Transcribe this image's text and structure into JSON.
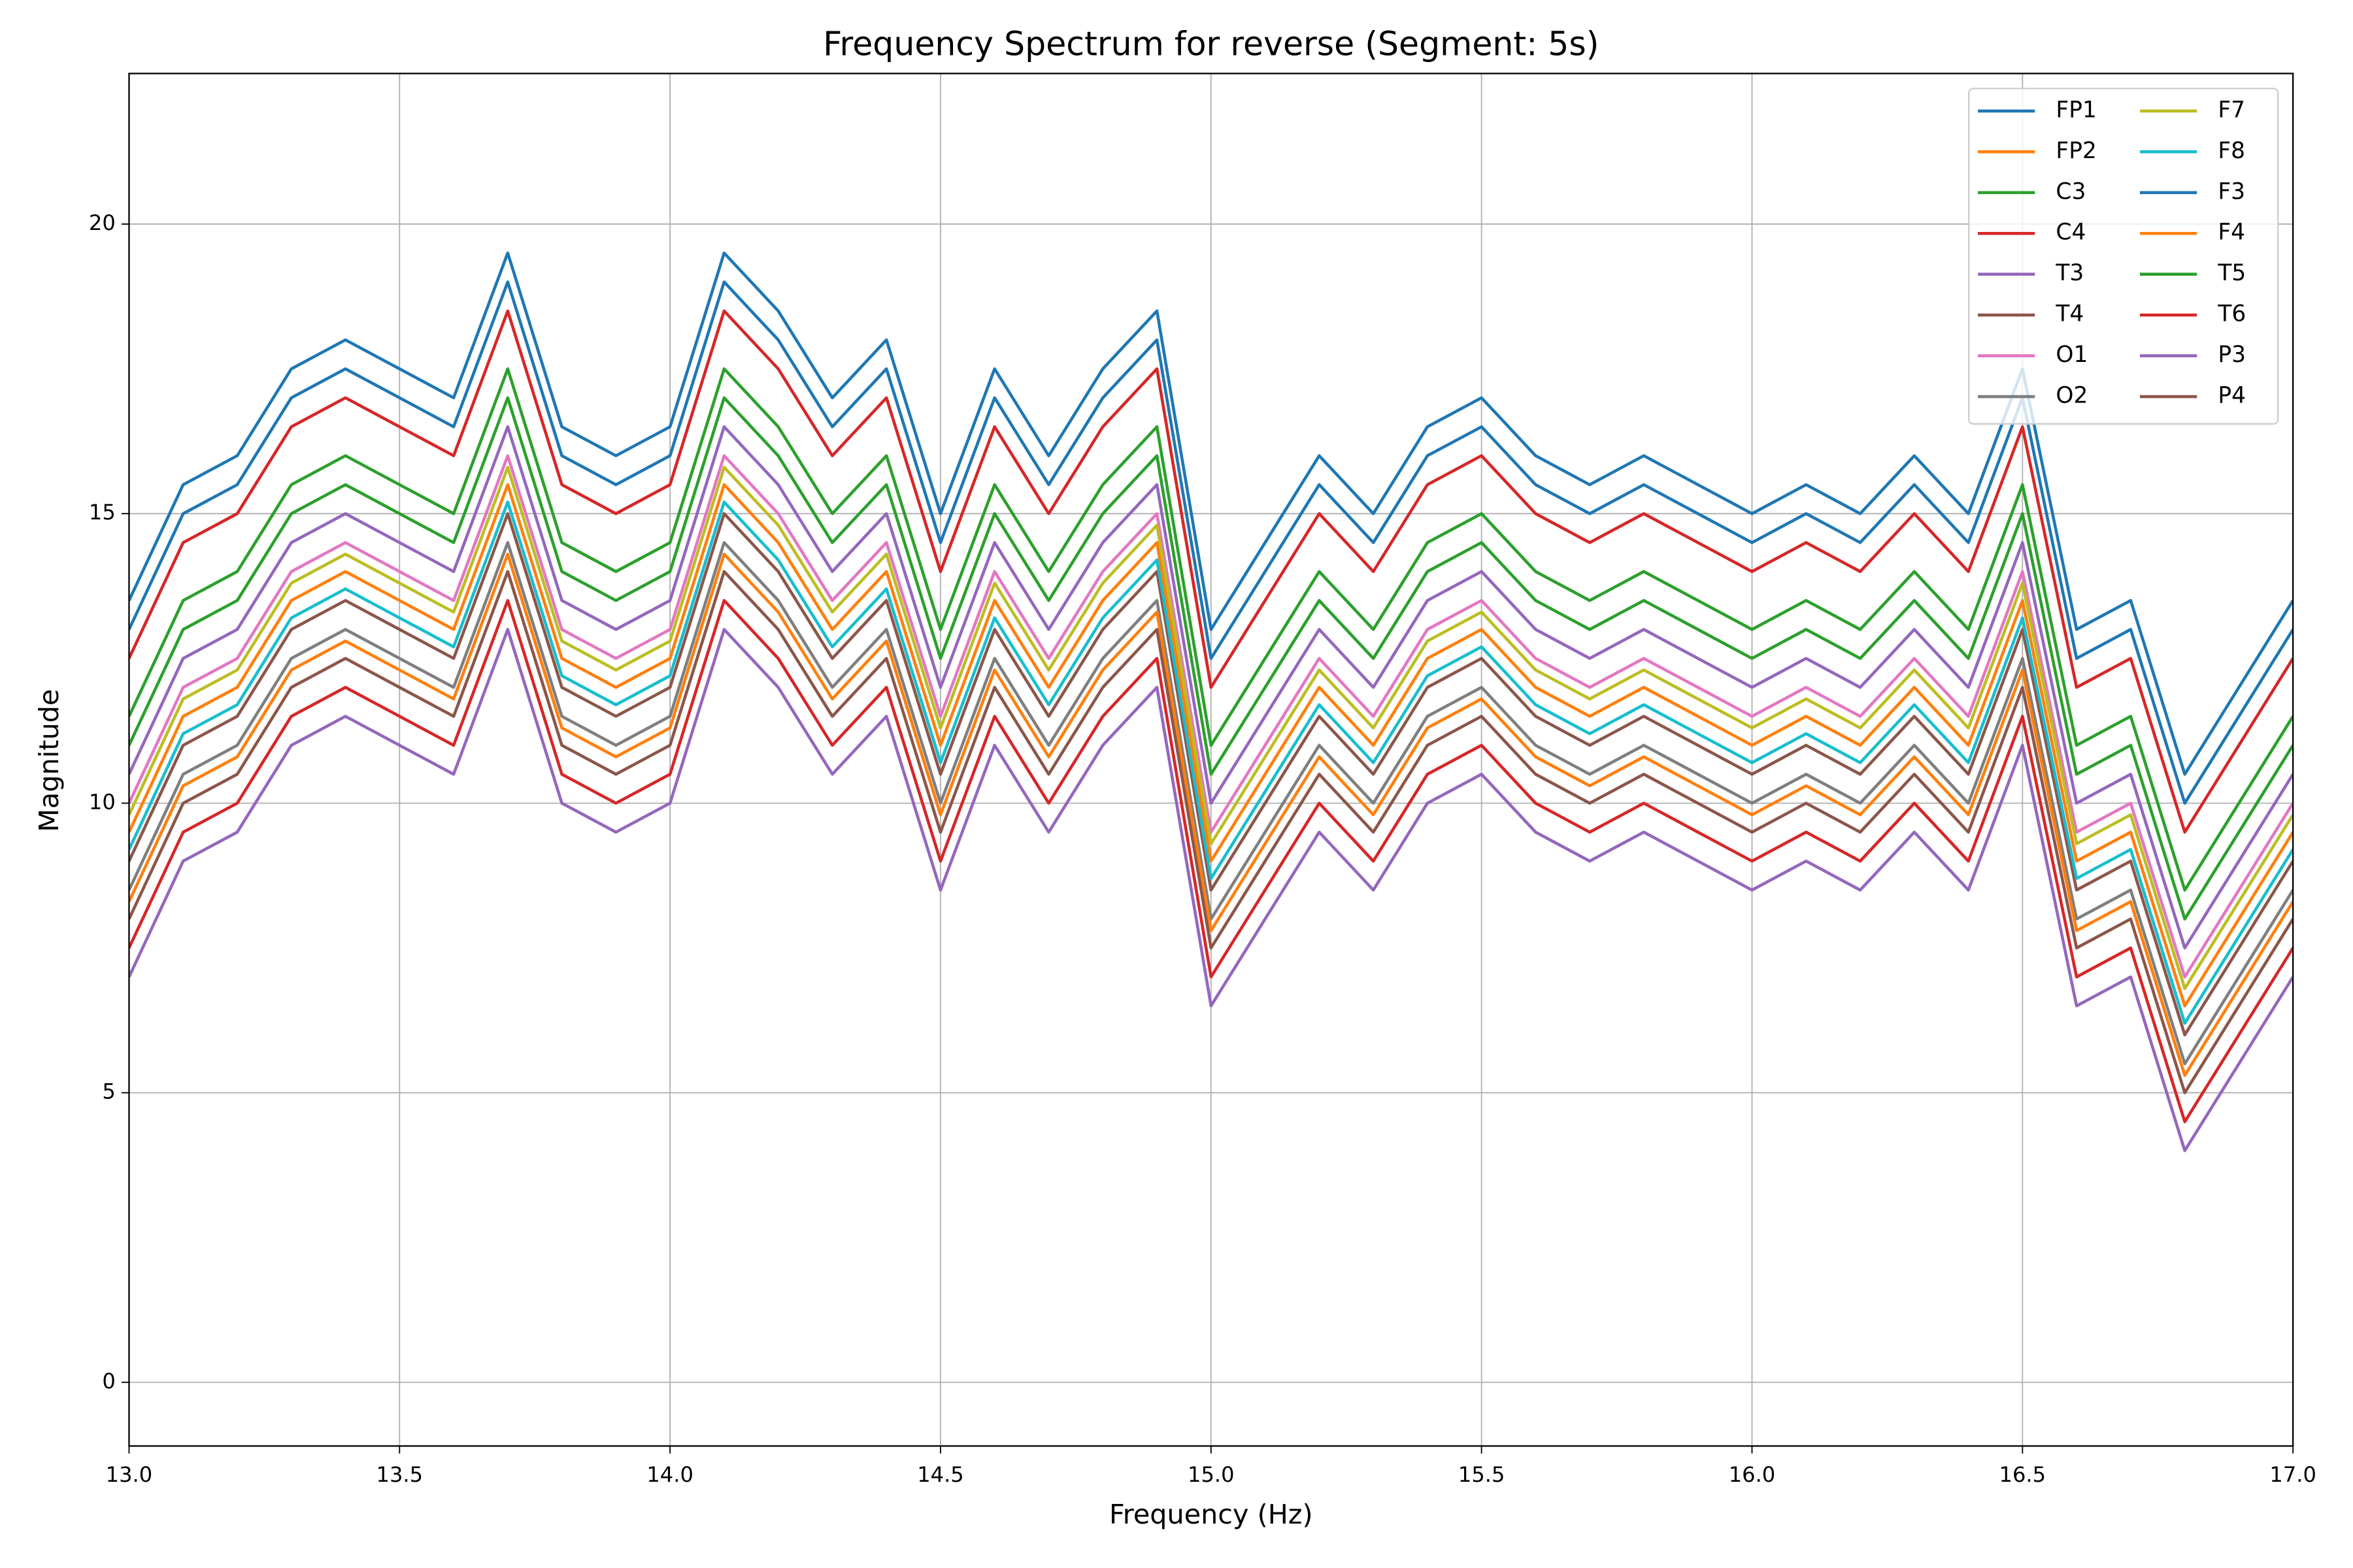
{
  "chart_data": {
    "type": "line",
    "title": "Frequency Spectrum for reverse (Segment: 5s)",
    "x_label": "Frequency (Hz)",
    "y_label": "Magnitude",
    "x": [
      13.0,
      13.1,
      13.2,
      13.3,
      13.4,
      13.5,
      13.6,
      13.7,
      13.8,
      13.9,
      14.0,
      14.1,
      14.2,
      14.3,
      14.4,
      14.5,
      14.6,
      14.7,
      14.8,
      14.9,
      15.0,
      15.1,
      15.2,
      15.3,
      15.4,
      15.5,
      15.6,
      15.7,
      15.8,
      15.9,
      16.0,
      16.1,
      16.2,
      16.3,
      16.4,
      16.5,
      16.6,
      16.7,
      16.8,
      16.9,
      17.0
    ],
    "xlim": [
      13,
      17
    ],
    "ylim": [
      -1.1,
      22.6
    ],
    "xticks": [
      {
        "value": 13,
        "label": "13.0"
      },
      13.5,
      {
        "value": 14,
        "label": "14.0"
      },
      14.5,
      {
        "value": 15,
        "label": "15.0"
      },
      15.5,
      {
        "value": 16,
        "label": "16.0"
      },
      16.5,
      {
        "value": 17,
        "label": "17.0"
      }
    ],
    "yticks": [
      0,
      5,
      10,
      15,
      20
    ],
    "grid": true,
    "legend": "upper right",
    "legend_columns": 2,
    "series": [
      {
        "name": "FP1",
        "color": "#1f77b4",
        "values": [
          13.5,
          15.5,
          16.0,
          17.5,
          18.0,
          17.5,
          17.0,
          19.5,
          16.5,
          16.0,
          16.5,
          19.5,
          18.5,
          17.0,
          18.0,
          15.0,
          17.5,
          16.0,
          17.5,
          18.5,
          13.0,
          14.5,
          16.0,
          15.0,
          16.5,
          17.0,
          16.0,
          15.5,
          16.0,
          15.5,
          15.0,
          15.5,
          15.0,
          16.0,
          15.0,
          17.5,
          13.0,
          13.5,
          10.5,
          12.0,
          13.5
        ]
      },
      {
        "name": "FP2",
        "color": "#ff7f0e",
        "values": [
          9.5,
          11.5,
          12.0,
          13.5,
          14.0,
          13.5,
          13.0,
          15.5,
          12.5,
          12.0,
          12.5,
          15.5,
          14.5,
          13.0,
          14.0,
          11.0,
          13.5,
          12.0,
          13.5,
          14.5,
          9.0,
          10.5,
          12.0,
          11.0,
          12.5,
          13.0,
          12.0,
          11.5,
          12.0,
          11.5,
          11.0,
          11.5,
          11.0,
          12.0,
          11.0,
          13.5,
          9.0,
          9.5,
          6.5,
          8.0,
          9.5
        ]
      },
      {
        "name": "C3",
        "color": "#2ca02c",
        "values": [
          11.5,
          13.5,
          14.0,
          15.5,
          16.0,
          15.5,
          15.0,
          17.5,
          14.5,
          14.0,
          14.5,
          17.5,
          16.5,
          15.0,
          16.0,
          13.0,
          15.5,
          14.0,
          15.5,
          16.5,
          11.0,
          12.5,
          14.0,
          13.0,
          14.5,
          15.0,
          14.0,
          13.5,
          14.0,
          13.5,
          13.0,
          13.5,
          13.0,
          14.0,
          13.0,
          15.5,
          11.0,
          11.5,
          8.5,
          10.0,
          11.5
        ]
      },
      {
        "name": "C4",
        "color": "#d62728",
        "values": [
          12.5,
          14.5,
          15.0,
          16.5,
          17.0,
          16.5,
          16.0,
          18.5,
          15.5,
          15.0,
          15.5,
          18.5,
          17.5,
          16.0,
          17.0,
          14.0,
          16.5,
          15.0,
          16.5,
          17.5,
          12.0,
          13.5,
          15.0,
          14.0,
          15.5,
          16.0,
          15.0,
          14.5,
          15.0,
          14.5,
          14.0,
          14.5,
          14.0,
          15.0,
          14.0,
          16.5,
          12.0,
          12.5,
          9.5,
          11.0,
          12.5
        ]
      },
      {
        "name": "T3",
        "color": "#9467bd",
        "values": [
          10.5,
          12.5,
          13.0,
          14.5,
          15.0,
          14.5,
          14.0,
          16.5,
          13.5,
          13.0,
          13.5,
          16.5,
          15.5,
          14.0,
          15.0,
          12.0,
          14.5,
          13.0,
          14.5,
          15.5,
          10.0,
          11.5,
          13.0,
          12.0,
          13.5,
          14.0,
          13.0,
          12.5,
          13.0,
          12.5,
          12.0,
          12.5,
          12.0,
          13.0,
          12.0,
          14.5,
          10.0,
          10.5,
          7.5,
          9.0,
          10.5
        ]
      },
      {
        "name": "T4",
        "color": "#8c564b",
        "values": [
          9.0,
          11.0,
          11.5,
          13.0,
          13.5,
          13.0,
          12.5,
          15.0,
          12.0,
          11.5,
          12.0,
          15.0,
          14.0,
          12.5,
          13.5,
          10.5,
          13.0,
          11.5,
          13.0,
          14.0,
          8.5,
          10.0,
          11.5,
          10.5,
          12.0,
          12.5,
          11.5,
          11.0,
          11.5,
          11.0,
          10.5,
          11.0,
          10.5,
          11.5,
          10.5,
          13.0,
          8.5,
          9.0,
          6.0,
          7.5,
          9.0
        ]
      },
      {
        "name": "O1",
        "color": "#e377c2",
        "values": [
          10.0,
          12.0,
          12.5,
          14.0,
          14.5,
          14.0,
          13.5,
          16.0,
          13.0,
          12.5,
          13.0,
          16.0,
          15.0,
          13.5,
          14.5,
          11.5,
          14.0,
          12.5,
          14.0,
          15.0,
          9.5,
          11.0,
          12.5,
          11.5,
          13.0,
          13.5,
          12.5,
          12.0,
          12.5,
          12.0,
          11.5,
          12.0,
          11.5,
          12.5,
          11.5,
          14.0,
          9.5,
          10.0,
          7.0,
          8.5,
          10.0
        ]
      },
      {
        "name": "O2",
        "color": "#7f7f7f",
        "values": [
          8.5,
          10.5,
          11.0,
          12.5,
          13.0,
          12.5,
          12.0,
          14.5,
          11.5,
          11.0,
          11.5,
          14.5,
          13.5,
          12.0,
          13.0,
          10.0,
          12.5,
          11.0,
          12.5,
          13.5,
          8.0,
          9.5,
          11.0,
          10.0,
          11.5,
          12.0,
          11.0,
          10.5,
          11.0,
          10.5,
          10.0,
          10.5,
          10.0,
          11.0,
          10.0,
          12.5,
          8.0,
          8.5,
          5.5,
          7.0,
          8.5
        ]
      },
      {
        "name": "F7",
        "color": "#bcbd22",
        "values": [
          9.8,
          11.8,
          12.3,
          13.8,
          14.3,
          13.8,
          13.3,
          15.8,
          12.8,
          12.3,
          12.8,
          15.8,
          14.8,
          13.3,
          14.3,
          11.3,
          13.8,
          12.3,
          13.8,
          14.8,
          9.3,
          10.8,
          12.3,
          11.3,
          12.8,
          13.3,
          12.3,
          11.8,
          12.3,
          11.8,
          11.3,
          11.8,
          11.3,
          12.3,
          11.3,
          13.8,
          9.3,
          9.8,
          6.8,
          8.3,
          9.8
        ]
      },
      {
        "name": "F8",
        "color": "#17becf",
        "values": [
          9.2,
          11.2,
          11.7,
          13.2,
          13.7,
          13.2,
          12.7,
          15.2,
          12.2,
          11.7,
          12.2,
          15.2,
          14.2,
          12.7,
          13.7,
          10.7,
          13.2,
          11.7,
          13.2,
          14.2,
          8.7,
          10.2,
          11.7,
          10.7,
          12.2,
          12.7,
          11.7,
          11.2,
          11.7,
          11.2,
          10.7,
          11.2,
          10.7,
          11.7,
          10.7,
          13.2,
          8.7,
          9.2,
          6.2,
          7.7,
          9.2
        ]
      },
      {
        "name": "F3",
        "color": "#1f77b4",
        "values": [
          13.0,
          15.0,
          15.5,
          17.0,
          17.5,
          17.0,
          16.5,
          19.0,
          16.0,
          15.5,
          16.0,
          19.0,
          18.0,
          16.5,
          17.5,
          14.5,
          17.0,
          15.5,
          17.0,
          18.0,
          12.5,
          14.0,
          15.5,
          14.5,
          16.0,
          16.5,
          15.5,
          15.0,
          15.5,
          15.0,
          14.5,
          15.0,
          14.5,
          15.5,
          14.5,
          17.0,
          12.5,
          13.0,
          10.0,
          11.5,
          13.0
        ]
      },
      {
        "name": "F4",
        "color": "#ff7f0e",
        "values": [
          8.3,
          10.3,
          10.8,
          12.3,
          12.8,
          12.3,
          11.8,
          14.3,
          11.3,
          10.8,
          11.3,
          14.3,
          13.3,
          11.8,
          12.8,
          9.8,
          12.3,
          10.8,
          12.3,
          13.3,
          7.8,
          9.3,
          10.8,
          9.8,
          11.3,
          11.8,
          10.8,
          10.3,
          10.8,
          10.3,
          9.8,
          10.3,
          9.8,
          10.8,
          9.8,
          12.3,
          7.8,
          8.3,
          5.3,
          6.8,
          8.3
        ]
      },
      {
        "name": "T5",
        "color": "#2ca02c",
        "values": [
          11.0,
          13.0,
          13.5,
          15.0,
          15.5,
          15.0,
          14.5,
          17.0,
          14.0,
          13.5,
          14.0,
          17.0,
          16.0,
          14.5,
          15.5,
          12.5,
          15.0,
          13.5,
          15.0,
          16.0,
          10.5,
          12.0,
          13.5,
          12.5,
          14.0,
          14.5,
          13.5,
          13.0,
          13.5,
          13.0,
          12.5,
          13.0,
          12.5,
          13.5,
          12.5,
          15.0,
          10.5,
          11.0,
          8.0,
          9.5,
          11.0
        ]
      },
      {
        "name": "T6",
        "color": "#d62728",
        "values": [
          7.5,
          9.5,
          10.0,
          11.5,
          12.0,
          11.5,
          11.0,
          13.5,
          10.5,
          10.0,
          10.5,
          13.5,
          12.5,
          11.0,
          12.0,
          9.0,
          11.5,
          10.0,
          11.5,
          12.5,
          7.0,
          8.5,
          10.0,
          9.0,
          10.5,
          11.0,
          10.0,
          9.5,
          10.0,
          9.5,
          9.0,
          9.5,
          9.0,
          10.0,
          9.0,
          11.5,
          7.0,
          7.5,
          4.5,
          6.0,
          7.5
        ]
      },
      {
        "name": "P3",
        "color": "#9467bd",
        "values": [
          7.0,
          9.0,
          9.5,
          11.0,
          11.5,
          11.0,
          10.5,
          13.0,
          10.0,
          9.5,
          10.0,
          13.0,
          12.0,
          10.5,
          11.5,
          8.5,
          11.0,
          9.5,
          11.0,
          12.0,
          6.5,
          8.0,
          9.5,
          8.5,
          10.0,
          10.5,
          9.5,
          9.0,
          9.5,
          9.0,
          8.5,
          9.0,
          8.5,
          9.5,
          8.5,
          11.0,
          6.5,
          7.0,
          4.0,
          5.5,
          7.0
        ]
      },
      {
        "name": "P4",
        "color": "#8c564b",
        "values": [
          8.0,
          10.0,
          10.5,
          12.0,
          12.5,
          12.0,
          11.5,
          14.0,
          11.0,
          10.5,
          11.0,
          14.0,
          13.0,
          11.5,
          12.5,
          9.5,
          12.0,
          10.5,
          12.0,
          13.0,
          7.5,
          9.0,
          10.5,
          9.5,
          11.0,
          11.5,
          10.5,
          10.0,
          10.5,
          10.0,
          9.5,
          10.0,
          9.5,
          10.5,
          9.5,
          12.0,
          7.5,
          8.0,
          5.0,
          6.5,
          8.0
        ]
      }
    ]
  }
}
